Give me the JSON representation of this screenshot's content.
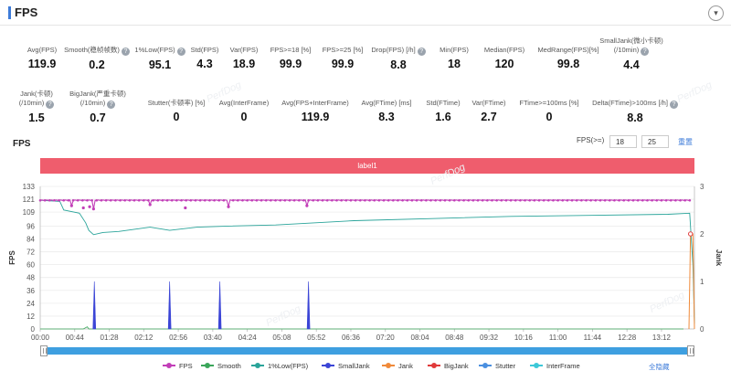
{
  "header": {
    "title": "FPS",
    "collapse_icon": "chevron-down-icon"
  },
  "metrics_row1": [
    {
      "label": "Avg(FPS)",
      "value": "119.9",
      "help": false
    },
    {
      "label": "Smooth(稳帧帧数)",
      "value": "0.2",
      "help": true
    },
    {
      "label": "1%Low(FPS)",
      "value": "95.1",
      "help": true
    },
    {
      "label": "Std(FPS)",
      "value": "4.3",
      "help": false
    },
    {
      "label": "Var(FPS)",
      "value": "18.9",
      "help": false
    },
    {
      "label": "FPS>=18 [%]",
      "value": "99.9",
      "help": false
    },
    {
      "label": "FPS>=25 [%]",
      "value": "99.9",
      "help": false
    },
    {
      "label": "Drop(FPS) [/h]",
      "value": "8.8",
      "help": true
    },
    {
      "label": "Min(FPS)",
      "value": "18",
      "help": false
    },
    {
      "label": "Median(FPS)",
      "value": "120",
      "help": false
    },
    {
      "label": "MedRange(FPS)[%]",
      "value": "99.8",
      "help": false
    },
    {
      "label1": "SmallJank(微小卡顿)",
      "label2": "(/10min)",
      "value": "4.4",
      "help": true
    }
  ],
  "metrics_row2": [
    {
      "label1": "Jank(卡顿)",
      "label2": "(/10min)",
      "value": "1.5",
      "help": true
    },
    {
      "label1": "BigJank(严重卡顿)",
      "label2": "(/10min)",
      "value": "0.7",
      "help": true
    },
    {
      "label": "Stutter(卡顿率) [%]",
      "value": "0",
      "help": false
    },
    {
      "label": "Avg(InterFrame)",
      "value": "0",
      "help": false
    },
    {
      "label": "Avg(FPS+InterFrame)",
      "value": "119.9",
      "help": false
    },
    {
      "label": "Avg(FTime) [ms]",
      "value": "8.3",
      "help": false
    },
    {
      "label": "Std(FTime)",
      "value": "1.6",
      "help": false
    },
    {
      "label": "Var(FTime)",
      "value": "2.7",
      "help": false
    },
    {
      "label": "FTime>=100ms [%]",
      "value": "0",
      "help": false
    },
    {
      "label": "Delta(FTime)>100ms [/h]",
      "value": "8.8",
      "help": true
    }
  ],
  "fps_section": {
    "title": "FPS",
    "threshold_label": "FPS(>=)",
    "threshold1": "18",
    "threshold2": "25",
    "reset_label": "重置"
  },
  "label_bar": "label1",
  "watermark": "PerfDog",
  "chart_data": {
    "type": "line",
    "xlabel": "",
    "ylabel": "FPS",
    "y2label": "Jank",
    "ylim": [
      0,
      133
    ],
    "y2lim": [
      0,
      3
    ],
    "yticks": [
      0,
      12,
      24,
      36,
      48,
      60,
      72,
      84,
      96,
      109,
      121,
      133
    ],
    "y2ticks": [
      0,
      1,
      2,
      3
    ],
    "xticks": [
      "00:00",
      "00:44",
      "01:28",
      "02:12",
      "02:56",
      "03:40",
      "04:24",
      "05:08",
      "05:52",
      "06:36",
      "07:20",
      "08:04",
      "08:48",
      "09:32",
      "10:16",
      "11:00",
      "11:44",
      "12:28",
      "13:12"
    ],
    "duration_s": 834,
    "fps_level": 120,
    "fps_dips": [
      [
        40,
        115
      ],
      [
        55,
        113
      ],
      [
        63,
        114
      ],
      [
        68,
        112
      ],
      [
        140,
        116
      ],
      [
        185,
        113
      ],
      [
        240,
        114
      ],
      [
        340,
        115
      ]
    ],
    "low1_series": [
      [
        0,
        120
      ],
      [
        25,
        119
      ],
      [
        30,
        111
      ],
      [
        50,
        108
      ],
      [
        58,
        99
      ],
      [
        62,
        92
      ],
      [
        68,
        88
      ],
      [
        80,
        90
      ],
      [
        100,
        91
      ],
      [
        140,
        95
      ],
      [
        165,
        92
      ],
      [
        200,
        95
      ],
      [
        240,
        96
      ],
      [
        300,
        97
      ],
      [
        400,
        101
      ],
      [
        500,
        103
      ],
      [
        600,
        105
      ],
      [
        700,
        106
      ],
      [
        800,
        107
      ],
      [
        828,
        108
      ],
      [
        832,
        60
      ],
      [
        834,
        5
      ]
    ],
    "small_jank_spikes": [
      [
        69,
        1
      ],
      [
        165,
        1
      ],
      [
        229,
        1
      ],
      [
        342,
        1
      ]
    ],
    "jank_end": [
      [
        827,
        0
      ],
      [
        829,
        2
      ],
      [
        832,
        2
      ],
      [
        834,
        0
      ]
    ],
    "series": [
      {
        "name": "FPS",
        "color": "#c23fb8"
      },
      {
        "name": "Smooth",
        "color": "#3aa65a"
      },
      {
        "name": "1%Low(FPS)",
        "color": "#2aa49a"
      },
      {
        "name": "SmallJank",
        "color": "#3b45d6"
      },
      {
        "name": "Jank",
        "color": "#f08a3a"
      },
      {
        "name": "BigJank",
        "color": "#e03a3a"
      },
      {
        "name": "Stutter",
        "color": "#4a8fe0"
      },
      {
        "name": "InterFrame",
        "color": "#3cc8d8"
      }
    ],
    "grid": true,
    "legend_position": "bottom"
  },
  "legend_hide_all": "全隐藏"
}
